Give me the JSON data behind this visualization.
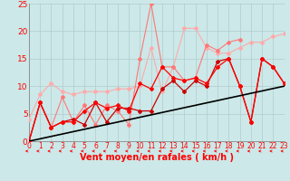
{
  "x": [
    0,
    1,
    2,
    3,
    4,
    5,
    6,
    7,
    8,
    9,
    10,
    11,
    12,
    13,
    14,
    15,
    16,
    17,
    18,
    19,
    20,
    21,
    22,
    23
  ],
  "series": [
    {
      "color": "#ffaaaa",
      "lw": 0.8,
      "marker": "D",
      "ms": 2.0,
      "y": [
        4.0,
        8.5,
        10.5,
        9.0,
        8.5,
        9.0,
        9.0,
        9.0,
        9.5,
        9.5,
        10.0,
        17.0,
        9.0,
        13.5,
        20.5,
        20.5,
        17.0,
        16.0,
        16.0,
        17.0,
        18.0,
        18.0,
        19.0,
        19.5
      ]
    },
    {
      "color": "#ff7777",
      "lw": 0.8,
      "marker": "D",
      "ms": 2.0,
      "y": [
        0.0,
        7.0,
        2.5,
        8.0,
        3.5,
        6.5,
        3.0,
        6.5,
        5.5,
        3.0,
        15.0,
        25.0,
        13.5,
        13.5,
        11.0,
        11.5,
        17.5,
        16.5,
        18.0,
        18.5,
        null,
        null,
        null,
        null
      ]
    },
    {
      "color": "#cc0000",
      "lw": 0.9,
      "marker": "D",
      "ms": 2.0,
      "y": [
        0.0,
        7.0,
        2.5,
        3.5,
        4.0,
        3.0,
        7.0,
        3.5,
        6.0,
        6.0,
        5.5,
        5.5,
        9.5,
        11.0,
        9.0,
        11.0,
        10.0,
        14.5,
        15.0,
        10.0,
        3.5,
        15.0,
        13.5,
        10.5
      ]
    },
    {
      "color": "#ff0000",
      "lw": 0.9,
      "marker": "D",
      "ms": 2.0,
      "y": [
        0.0,
        7.0,
        2.5,
        3.5,
        3.5,
        5.5,
        7.0,
        6.0,
        6.5,
        5.5,
        10.5,
        9.5,
        13.5,
        11.5,
        11.0,
        11.5,
        10.5,
        13.5,
        15.0,
        10.0,
        3.5,
        15.0,
        13.5,
        10.5
      ]
    },
    {
      "color": "#000000",
      "lw": 1.2,
      "marker": null,
      "ms": 0,
      "y": [
        0.0,
        0.43,
        0.87,
        1.3,
        1.74,
        2.17,
        2.61,
        3.04,
        3.48,
        3.91,
        4.35,
        4.78,
        5.22,
        5.65,
        6.09,
        6.52,
        6.96,
        7.39,
        7.83,
        8.26,
        8.7,
        9.13,
        9.57,
        10.0
      ]
    }
  ],
  "xlabel": "Vent moyen/en rafales ( km/h )",
  "xlim": [
    0,
    23
  ],
  "ylim": [
    0,
    25
  ],
  "xticks": [
    0,
    1,
    2,
    3,
    4,
    5,
    6,
    7,
    8,
    9,
    10,
    11,
    12,
    13,
    14,
    15,
    16,
    17,
    18,
    19,
    20,
    21,
    22,
    23
  ],
  "yticks": [
    0,
    5,
    10,
    15,
    20,
    25
  ],
  "bg_color": "#cce8e8",
  "grid_color": "#b0cccc",
  "xlabel_color": "#ff0000",
  "xlabel_fontsize": 7.0,
  "xtick_fontsize": 5.5,
  "ytick_fontsize": 6.5
}
